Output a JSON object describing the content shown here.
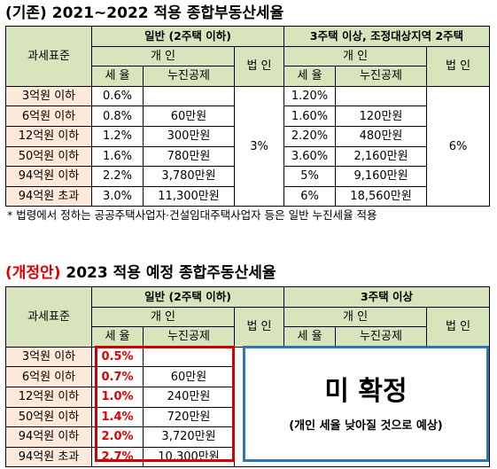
{
  "section1": {
    "title_prefix": "(기존)",
    "title_rest": " 2021~2022 적용 종합부동산세율",
    "header": {
      "category": "과세표준",
      "group_general": "일반 (2주택 이하)",
      "group_multi": "3주택 이상, 조정대상지역 2주택",
      "individual": "개 인",
      "corporate": "법 인",
      "rate": "세 율",
      "deduction": "누진공제"
    },
    "rows": [
      {
        "bracket": "3억원 이하",
        "g_rate": "0.6%",
        "g_ded": "",
        "m_rate": "1.20%",
        "m_ded": ""
      },
      {
        "bracket": "6억원 이하",
        "g_rate": "0.8%",
        "g_ded": "60만원",
        "m_rate": "1.60%",
        "m_ded": "120만원"
      },
      {
        "bracket": "12억원 이하",
        "g_rate": "1.2%",
        "g_ded": "300만원",
        "m_rate": "2.20%",
        "m_ded": "480만원"
      },
      {
        "bracket": "50억원 이하",
        "g_rate": "1.6%",
        "g_ded": "780만원",
        "m_rate": "3.60%",
        "m_ded": "2,160만원"
      },
      {
        "bracket": "94억원 이하",
        "g_rate": "2.2%",
        "g_ded": "3,780만원",
        "m_rate": "5%",
        "m_ded": "9,160만원"
      },
      {
        "bracket": "94억원 초과",
        "g_rate": "3.0%",
        "g_ded": "11,300만원",
        "m_rate": "6%",
        "m_ded": "18,560만원"
      }
    ],
    "corp_general": "3%",
    "corp_multi": "6%",
    "note": "* 법령에서 정하는 공공주택사업자·건설임대주택사업자 등은 일반 누진세율 적용"
  },
  "section2": {
    "title_prefix": "(개정안)",
    "title_rest": " 2023 적용 예정 종합주동산세율",
    "header": {
      "category": "과세표준",
      "group_general": "일반 (2주택 이하)",
      "group_multi": "3주택 이상",
      "individual": "개 인",
      "corporate": "법 인",
      "rate": "세 율",
      "deduction": "누진공제"
    },
    "rows": [
      {
        "bracket": "3억원 이하",
        "g_rate": "0.5%",
        "g_ded": ""
      },
      {
        "bracket": "6억원 이하",
        "g_rate": "0.7%",
        "g_ded": "60만원"
      },
      {
        "bracket": "12억원 이하",
        "g_rate": "1.0%",
        "g_ded": "240만원"
      },
      {
        "bracket": "50억원 이하",
        "g_rate": "1.4%",
        "g_ded": "720만원"
      },
      {
        "bracket": "94억원 이하",
        "g_rate": "2.0%",
        "g_ded": "3,720만원"
      },
      {
        "bracket": "94억원 초과",
        "g_rate": "2.7%",
        "g_ded": "10,300만원"
      }
    ],
    "undecided": "미 확정",
    "undecided_note": "(개인 세율 낮아질 것으로 예상)"
  },
  "colors": {
    "header_fill": "#d8e4bc",
    "bracket_fill": "#fde9d9",
    "highlight_red": "#e00000",
    "box_blue": "#2e75b6"
  }
}
